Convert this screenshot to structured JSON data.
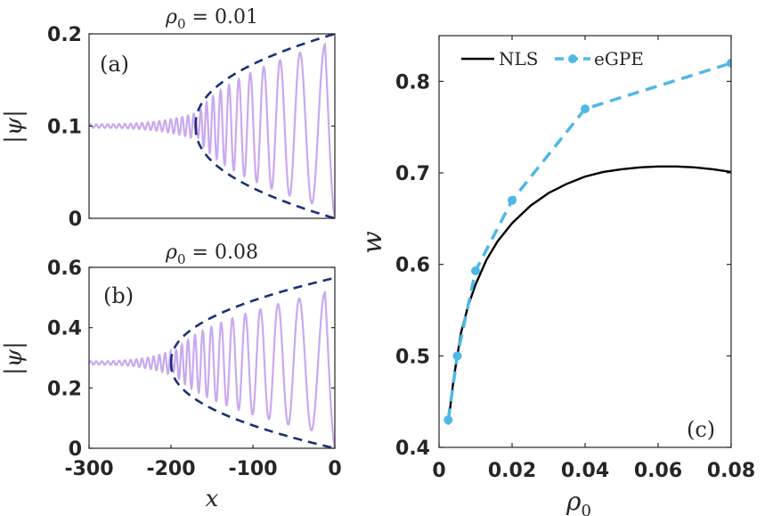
{
  "chart_data": [
    {
      "id": "a",
      "type": "line",
      "panel_label": "(a)",
      "title": "ρ₀ = 0.01",
      "title_symbol": "ρ",
      "title_sub": "0",
      "title_rest": " = 0.01",
      "ylabel": "|ψ|",
      "xlim": [
        -300,
        0
      ],
      "ylim": [
        0,
        0.2
      ],
      "yticks": [
        {
          "v": 0,
          "label": "0"
        },
        {
          "v": 0.1,
          "label": "0.1"
        },
        {
          "v": 0.2,
          "label": "0.2"
        }
      ],
      "background": 0.1,
      "front_x": -170,
      "envelope_max": 0.2,
      "wave_amplitude_max": 0.19,
      "series_colors": {
        "wave": "#c9a9ef",
        "envelope": "#1c2f7a"
      }
    },
    {
      "id": "b",
      "type": "line",
      "panel_label": "(b)",
      "title": "ρ₀ = 0.08",
      "title_symbol": "ρ",
      "title_sub": "0",
      "title_rest": " = 0.08",
      "ylabel": "|ψ|",
      "xlabel": "x",
      "xlim": [
        -300,
        0
      ],
      "ylim": [
        0,
        0.6
      ],
      "xticks": [
        {
          "v": -300,
          "label": "-300"
        },
        {
          "v": -200,
          "label": "-200"
        },
        {
          "v": -100,
          "label": "-100"
        },
        {
          "v": 0,
          "label": "0"
        }
      ],
      "yticks": [
        {
          "v": 0,
          "label": "0"
        },
        {
          "v": 0.2,
          "label": "0.2"
        },
        {
          "v": 0.4,
          "label": "0.4"
        },
        {
          "v": 0.6,
          "label": "0.6"
        }
      ],
      "background": 0.283,
      "front_x": -200,
      "envelope_max": 0.565,
      "wave_amplitude_max": 0.52,
      "series_colors": {
        "wave": "#c9a9ef",
        "envelope": "#1c2f7a"
      }
    },
    {
      "id": "c",
      "type": "line",
      "panel_label": "(c)",
      "xlabel_symbol": "ρ",
      "xlabel_sub": "0",
      "ylabel": "w",
      "xlim": [
        0,
        0.08
      ],
      "ylim": [
        0.4,
        0.85
      ],
      "xticks": [
        {
          "v": 0,
          "label": "0"
        },
        {
          "v": 0.02,
          "label": "0.02"
        },
        {
          "v": 0.04,
          "label": "0.04"
        },
        {
          "v": 0.06,
          "label": "0.06"
        },
        {
          "v": 0.08,
          "label": "0.08"
        }
      ],
      "yticks": [
        {
          "v": 0.4,
          "label": "0.4"
        },
        {
          "v": 0.5,
          "label": "0.5"
        },
        {
          "v": 0.6,
          "label": "0.6"
        },
        {
          "v": 0.7,
          "label": "0.7"
        },
        {
          "v": 0.8,
          "label": "0.8"
        }
      ],
      "series": [
        {
          "name": "NLS",
          "color": "#000000",
          "style": "solid",
          "x": [
            0.0025,
            0.004,
            0.006,
            0.008,
            0.01,
            0.013,
            0.016,
            0.02,
            0.025,
            0.03,
            0.035,
            0.04,
            0.045,
            0.05,
            0.055,
            0.06,
            0.065,
            0.07,
            0.075,
            0.08
          ],
          "y": [
            0.425,
            0.475,
            0.525,
            0.555,
            0.578,
            0.605,
            0.625,
            0.645,
            0.664,
            0.678,
            0.688,
            0.696,
            0.701,
            0.704,
            0.706,
            0.707,
            0.707,
            0.706,
            0.704,
            0.701
          ]
        },
        {
          "name": "eGPE",
          "color": "#4fb8e6",
          "style": "dashed",
          "marker": "circle",
          "x": [
            0.0025,
            0.005,
            0.01,
            0.02,
            0.04,
            0.08
          ],
          "y": [
            0.43,
            0.5,
            0.593,
            0.67,
            0.77,
            0.82
          ]
        }
      ],
      "legend": {
        "placement": "top",
        "entries": [
          "NLS",
          "eGPE"
        ]
      }
    }
  ]
}
